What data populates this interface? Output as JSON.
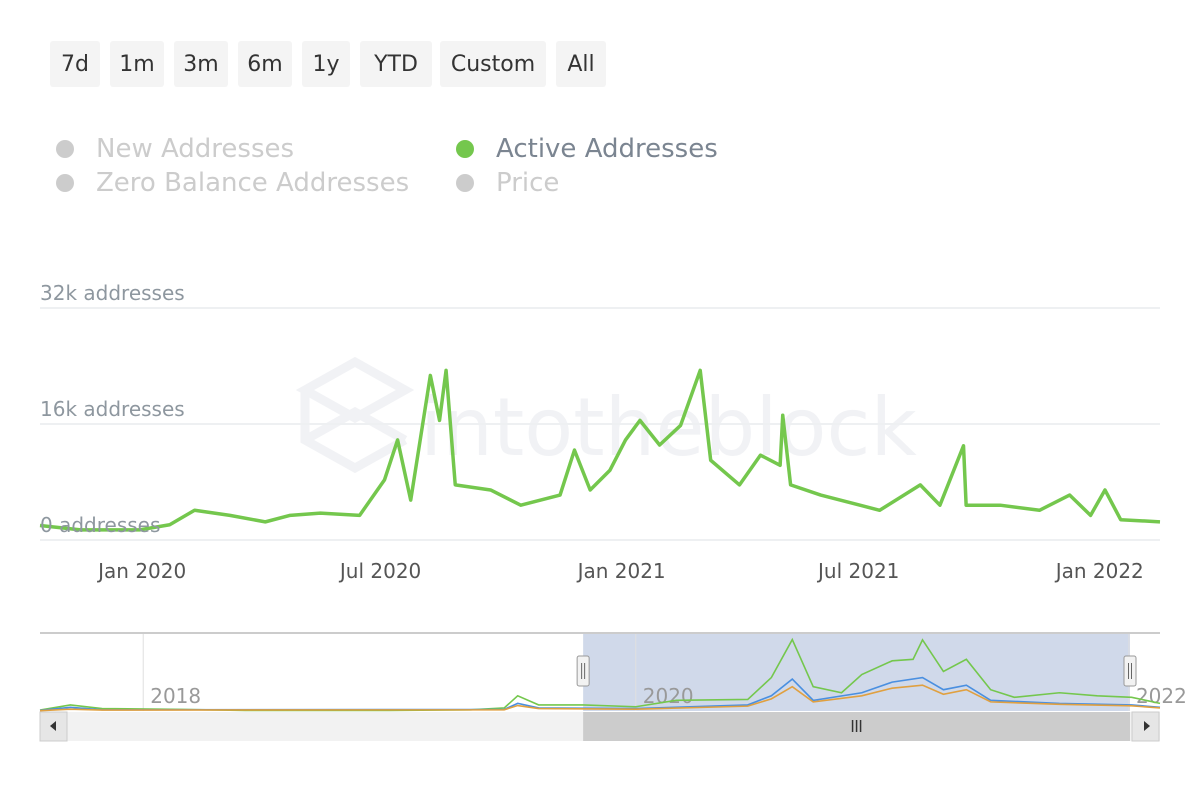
{
  "range_buttons": [
    "7d",
    "1m",
    "3m",
    "6m",
    "1y",
    "YTD",
    "Custom",
    "All"
  ],
  "legend": [
    {
      "label": "New Addresses",
      "active": false
    },
    {
      "label": "Active Addresses",
      "active": true
    },
    {
      "label": "Zero Balance Addresses",
      "active": false
    },
    {
      "label": "Price",
      "active": false
    }
  ],
  "watermark": "intotheblock",
  "colors": {
    "active": "#74c74d",
    "new": "#4a8fe0",
    "zero": "#e0a040",
    "nav_fill": "#d0d9ea"
  },
  "chart_data": {
    "type": "line",
    "yaxis": {
      "ticks": [
        {
          "v": 0,
          "label": "0 addresses"
        },
        {
          "v": 16,
          "label": "16k addresses"
        },
        {
          "v": 32,
          "label": "32k addresses"
        }
      ],
      "unit": "k addresses",
      "ylim": [
        0,
        32
      ]
    },
    "xaxis": {
      "ticks": [
        {
          "d": "2020-01-01",
          "label": "Jan 2020"
        },
        {
          "d": "2020-07-01",
          "label": "Jul 2020"
        },
        {
          "d": "2021-01-01",
          "label": "Jan 2021"
        },
        {
          "d": "2021-07-01",
          "label": "Jul 2021"
        },
        {
          "d": "2022-01-01",
          "label": "Jan 2022"
        }
      ],
      "range": [
        "2019-10-15",
        "2022-02-16"
      ]
    },
    "series": [
      {
        "name": "Active Addresses",
        "points": [
          [
            "2019-10-15",
            2.0
          ],
          [
            "2019-11-15",
            1.4
          ],
          [
            "2019-12-30",
            1.4
          ],
          [
            "2020-01-22",
            2.1
          ],
          [
            "2020-02-10",
            4.1
          ],
          [
            "2020-03-08",
            3.4
          ],
          [
            "2020-04-04",
            2.5
          ],
          [
            "2020-04-23",
            3.4
          ],
          [
            "2020-05-16",
            3.7
          ],
          [
            "2020-06-15",
            3.4
          ],
          [
            "2020-07-04",
            8.3
          ],
          [
            "2020-07-14",
            13.8
          ],
          [
            "2020-07-24",
            5.5
          ],
          [
            "2020-08-08",
            22.7
          ],
          [
            "2020-08-15",
            16.5
          ],
          [
            "2020-08-20",
            23.4
          ],
          [
            "2020-08-27",
            7.6
          ],
          [
            "2020-09-23",
            6.9
          ],
          [
            "2020-10-16",
            4.8
          ],
          [
            "2020-11-15",
            6.2
          ],
          [
            "2020-11-26",
            12.4
          ],
          [
            "2020-12-08",
            6.9
          ],
          [
            "2020-12-23",
            9.6
          ],
          [
            "2021-01-04",
            13.8
          ],
          [
            "2021-01-15",
            16.5
          ],
          [
            "2021-01-30",
            13.1
          ],
          [
            "2021-02-15",
            15.8
          ],
          [
            "2021-03-02",
            23.4
          ],
          [
            "2021-03-10",
            11.0
          ],
          [
            "2021-04-01",
            7.6
          ],
          [
            "2021-04-17",
            11.7
          ],
          [
            "2021-05-02",
            10.3
          ],
          [
            "2021-05-04",
            17.2
          ],
          [
            "2021-05-10",
            7.6
          ],
          [
            "2021-06-02",
            6.2
          ],
          [
            "2021-07-02",
            4.8
          ],
          [
            "2021-07-17",
            4.1
          ],
          [
            "2021-08-17",
            7.6
          ],
          [
            "2021-09-01",
            4.8
          ],
          [
            "2021-09-19",
            13.0
          ],
          [
            "2021-09-21",
            4.8
          ],
          [
            "2021-10-17",
            4.8
          ],
          [
            "2021-11-16",
            4.1
          ],
          [
            "2021-12-09",
            6.2
          ],
          [
            "2021-12-25",
            3.4
          ],
          [
            "2022-01-05",
            6.9
          ],
          [
            "2022-01-17",
            2.8
          ],
          [
            "2022-02-16",
            2.5
          ]
        ]
      }
    ]
  },
  "navigator": {
    "xaxis": {
      "ticks": [
        {
          "d": "2018-01-01",
          "label": "2018"
        },
        {
          "d": "2020-01-01",
          "label": "2020"
        },
        {
          "d": "2022-01-01",
          "label": "2022"
        }
      ],
      "range": [
        "2017-08-01",
        "2022-02-16"
      ]
    },
    "selection": [
      "2019-10-15",
      "2022-02-16"
    ],
    "series": [
      {
        "name": "Active Addresses",
        "points": [
          [
            "2017-08-01",
            0.3
          ],
          [
            "2017-09-15",
            2.0
          ],
          [
            "2017-11-01",
            0.8
          ],
          [
            "2018-03-01",
            0.5
          ],
          [
            "2018-06-01",
            0.2
          ],
          [
            "2019-01-01",
            0.2
          ],
          [
            "2019-05-01",
            0.4
          ],
          [
            "2019-06-20",
            1.0
          ],
          [
            "2019-07-10",
            5.0
          ],
          [
            "2019-08-10",
            2.0
          ],
          [
            "2019-10-15",
            2.0
          ],
          [
            "2020-01-01",
            1.4
          ],
          [
            "2020-03-01",
            3.5
          ],
          [
            "2020-06-15",
            3.8
          ],
          [
            "2020-07-20",
            11
          ],
          [
            "2020-08-20",
            23.5
          ],
          [
            "2020-09-20",
            8
          ],
          [
            "2020-11-01",
            6
          ],
          [
            "2020-12-01",
            12
          ],
          [
            "2021-01-15",
            16.5
          ],
          [
            "2021-02-15",
            17
          ],
          [
            "2021-03-01",
            23.4
          ],
          [
            "2021-04-01",
            13
          ],
          [
            "2021-05-05",
            17
          ],
          [
            "2021-06-10",
            7
          ],
          [
            "2021-07-15",
            4.5
          ],
          [
            "2021-09-20",
            6
          ],
          [
            "2021-11-15",
            5
          ],
          [
            "2022-01-05",
            4.5
          ],
          [
            "2022-02-16",
            2.5
          ]
        ]
      },
      {
        "name": "New Addresses",
        "points": [
          [
            "2017-08-01",
            0.2
          ],
          [
            "2017-09-15",
            1.2
          ],
          [
            "2017-11-01",
            0.4
          ],
          [
            "2019-06-20",
            0.5
          ],
          [
            "2019-07-10",
            2.5
          ],
          [
            "2019-08-10",
            1.0
          ],
          [
            "2020-01-01",
            0.8
          ],
          [
            "2020-06-15",
            2.0
          ],
          [
            "2020-07-20",
            5
          ],
          [
            "2020-08-20",
            10.5
          ],
          [
            "2020-09-20",
            3.5
          ],
          [
            "2020-12-01",
            6
          ],
          [
            "2021-01-15",
            9.5
          ],
          [
            "2021-03-01",
            11
          ],
          [
            "2021-04-01",
            7
          ],
          [
            "2021-05-05",
            8.5
          ],
          [
            "2021-06-10",
            3.5
          ],
          [
            "2021-09-20",
            2.5
          ],
          [
            "2022-01-05",
            2
          ],
          [
            "2022-02-16",
            1.2
          ]
        ]
      },
      {
        "name": "Zero Balance Addresses",
        "points": [
          [
            "2017-08-01",
            0.1
          ],
          [
            "2017-09-15",
            0.6
          ],
          [
            "2017-11-01",
            0.3
          ],
          [
            "2019-06-20",
            0.4
          ],
          [
            "2019-07-10",
            1.8
          ],
          [
            "2019-08-10",
            0.8
          ],
          [
            "2020-01-01",
            0.6
          ],
          [
            "2020-06-15",
            1.6
          ],
          [
            "2020-07-20",
            4
          ],
          [
            "2020-08-20",
            8
          ],
          [
            "2020-09-20",
            3
          ],
          [
            "2020-12-01",
            5
          ],
          [
            "2021-01-15",
            7.5
          ],
          [
            "2021-03-01",
            8.5
          ],
          [
            "2021-04-01",
            5.5
          ],
          [
            "2021-05-05",
            7
          ],
          [
            "2021-06-10",
            3
          ],
          [
            "2021-09-20",
            2.2
          ],
          [
            "2022-01-05",
            1.7
          ],
          [
            "2022-02-16",
            1.0
          ]
        ]
      }
    ]
  }
}
